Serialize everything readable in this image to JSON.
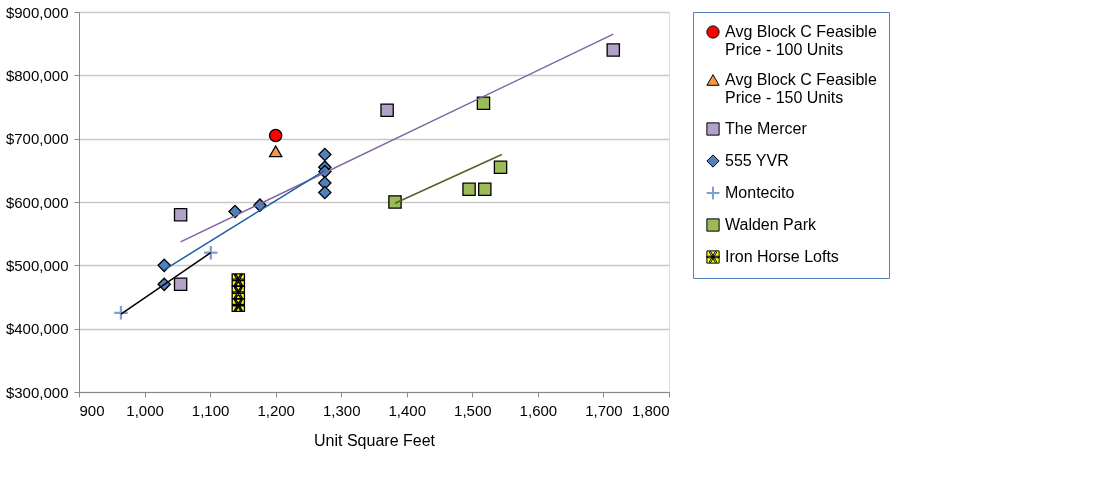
{
  "chart_data": {
    "type": "scatter",
    "xlabel": "Unit Square Feet",
    "xlim": [
      900,
      1800
    ],
    "ylim": [
      300000,
      900000
    ],
    "xticks": [
      {
        "value": 900,
        "label": "900"
      },
      {
        "value": 1000,
        "label": "1,000"
      },
      {
        "value": 1100,
        "label": "1,100"
      },
      {
        "value": 1200,
        "label": "1,200"
      },
      {
        "value": 1300,
        "label": "1,300"
      },
      {
        "value": 1400,
        "label": "1,400"
      },
      {
        "value": 1500,
        "label": "1,500"
      },
      {
        "value": 1600,
        "label": "1,600"
      },
      {
        "value": 1700,
        "label": "1,700"
      },
      {
        "value": 1800,
        "label": "1,800"
      }
    ],
    "yticks": [
      {
        "value": 300000,
        "label": "$300,000"
      },
      {
        "value": 400000,
        "label": "$400,000"
      },
      {
        "value": 500000,
        "label": "$500,000"
      },
      {
        "value": 600000,
        "label": "$600,000"
      },
      {
        "value": 700000,
        "label": "$700,000"
      },
      {
        "value": 800000,
        "label": "$800,000"
      },
      {
        "value": 900000,
        "label": "$900,000"
      }
    ],
    "grid": "y",
    "legend": "right",
    "series": [
      {
        "name": "Avg Block C Feasible Price - 100 Units",
        "marker": "circle",
        "color": "#ff0000",
        "x": [
          1200
        ],
        "values": [
          705000
        ]
      },
      {
        "name": "Avg Block C Feasible Price - 150 Units",
        "marker": "triangle",
        "color": "#f79646",
        "x": [
          1200
        ],
        "values": [
          680000
        ]
      },
      {
        "name": "The Mercer",
        "marker": "square",
        "color": "#b3a2c7",
        "x": [
          1055,
          1055,
          1370,
          1715
        ],
        "values": [
          580000,
          470000,
          745000,
          840000
        ]
      },
      {
        "name": "555 YVR",
        "marker": "diamond",
        "color": "#4f81bd",
        "x": [
          1030,
          1030,
          1138,
          1176,
          1275,
          1275,
          1275,
          1275,
          1275
        ],
        "values": [
          500000,
          470000,
          585000,
          595000,
          675000,
          655000,
          648000,
          630000,
          615000
        ]
      },
      {
        "name": "Montecito",
        "marker": "cross",
        "color": "#7f9fcf",
        "x": [
          964,
          1101
        ],
        "values": [
          425000,
          520000
        ]
      },
      {
        "name": "Walden Park",
        "marker": "square",
        "color": "#9bbb59",
        "x": [
          1382,
          1517,
          1495,
          1519,
          1543
        ],
        "values": [
          600000,
          756000,
          620000,
          620000,
          655000
        ]
      },
      {
        "name": "Iron Horse Lofts",
        "marker": "star",
        "color": "#ffff00",
        "x": [
          1143,
          1143,
          1143
        ],
        "values": [
          477000,
          457000,
          437000
        ]
      },
      {
        "type": "line",
        "color": "#8064a2",
        "x": [
          1055,
          1715
        ],
        "values": [
          537000,
          865000
        ]
      },
      {
        "type": "line",
        "color": "#1f5f9f",
        "x": [
          1030,
          1275
        ],
        "values": [
          493000,
          650000
        ]
      },
      {
        "type": "line",
        "color": "#000000",
        "x": [
          964,
          1101
        ],
        "values": [
          423000,
          520000
        ]
      },
      {
        "type": "line",
        "color": "#4f6228",
        "x": [
          1382,
          1545
        ],
        "values": [
          598000,
          675000
        ]
      }
    ]
  }
}
